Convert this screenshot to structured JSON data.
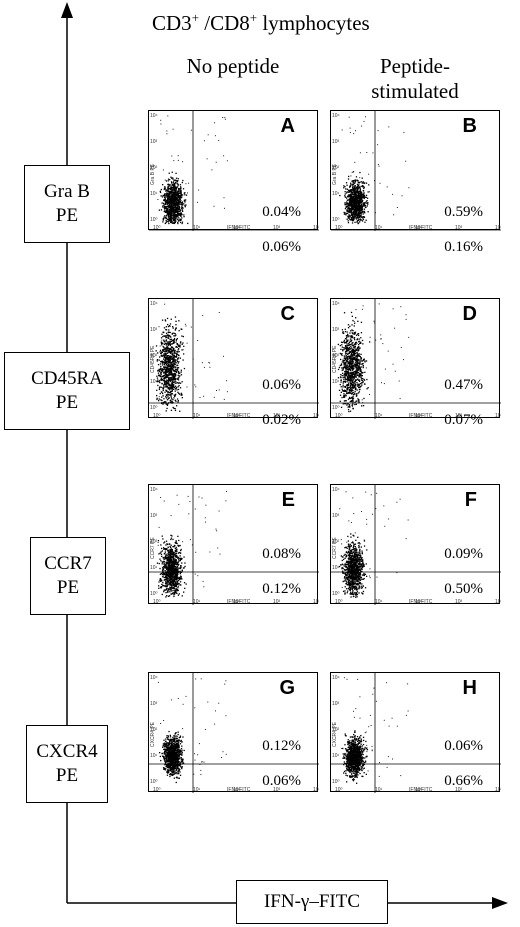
{
  "header": {
    "title_prefix": "CD3",
    "title_sup1": "+",
    "title_mid": " /CD8",
    "title_sup2": "+",
    "title_suffix": " lymphocytes"
  },
  "columns": {
    "left_heading": "No peptide",
    "right_heading_line1": "Peptide-",
    "right_heading_line2": "stimulated"
  },
  "x_axis_label": "IFN-γ–FITC",
  "rows": [
    {
      "label_line1": "Gra B",
      "label_line2": "PE",
      "panels": [
        {
          "letter": "A",
          "upper_pct": "0.04%",
          "lower_pct": "0.06%",
          "y_axis": "Gra B PE",
          "x_axis": "IFNg FITC"
        },
        {
          "letter": "B",
          "upper_pct": "0.59%",
          "lower_pct": "0.16%",
          "y_axis": "Gra B PE",
          "x_axis": "IFNg FITC"
        }
      ]
    },
    {
      "label_line1": "CD45RA",
      "label_line2": "PE",
      "panels": [
        {
          "letter": "C",
          "upper_pct": "0.06%",
          "lower_pct": "0.02%",
          "y_axis": "CD45RA PE",
          "x_axis": "IFNg FITC"
        },
        {
          "letter": "D",
          "upper_pct": "0.47%",
          "lower_pct": "0.07%",
          "y_axis": "CD45RA PE",
          "x_axis": "IFNg FITC"
        }
      ]
    },
    {
      "label_line1": "CCR7",
      "label_line2": "PE",
      "panels": [
        {
          "letter": "E",
          "upper_pct": "0.08%",
          "lower_pct": "0.12%",
          "y_axis": "CCR7 PE",
          "x_axis": "IFNg FITC"
        },
        {
          "letter": "F",
          "upper_pct": "0.09%",
          "lower_pct": "0.50%",
          "y_axis": "CCR7 PE",
          "x_axis": "IFNg FITC"
        }
      ]
    },
    {
      "label_line1": "CXCR4",
      "label_line2": "PE",
      "panels": [
        {
          "letter": "G",
          "upper_pct": "0.12%",
          "lower_pct": "0.06%",
          "y_axis": "CXCR4 PE",
          "x_axis": "IFNg FITC"
        },
        {
          "letter": "H",
          "upper_pct": "0.06%",
          "lower_pct": "0.66%",
          "y_axis": "CXCR4 PE",
          "x_axis": "IFNg FITC"
        }
      ]
    }
  ],
  "tick_labels": {
    "x": [
      "10⁰",
      "10¹",
      "10²",
      "10³",
      "10⁴"
    ],
    "y": [
      "10⁰",
      "10¹",
      "10²",
      "10³",
      "10⁴"
    ]
  }
}
